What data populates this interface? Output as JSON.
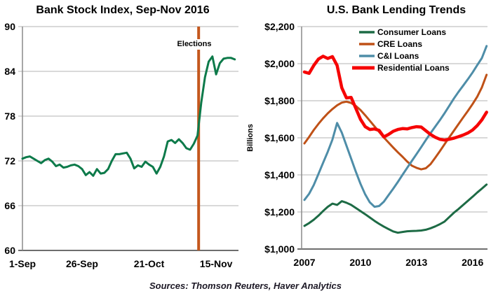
{
  "source_note": "Sources: Thomson Reuters, Haver Analytics",
  "chart_data": [
    {
      "type": "line",
      "title": "Bank Stock Index, Sep-Nov 2016",
      "x_tick_labels": [
        "1-Sep",
        "26-Sep",
        "21-Oct",
        "15-Nov"
      ],
      "x_tick_positions": [
        0,
        16,
        34,
        52
      ],
      "x_range": [
        0,
        58
      ],
      "x_start": 0,
      "x_step": 1,
      "ylim": [
        60,
        90
      ],
      "y_tick_values": [
        60,
        66,
        72,
        78,
        84,
        90
      ],
      "y_tick_labels": [
        "60",
        "66",
        "72",
        "78",
        "84",
        "90"
      ],
      "grid": true,
      "annotation": {
        "label": "Elections",
        "x": 47.3,
        "color": "#c4571d"
      },
      "series": [
        {
          "name": "Bank Stock Index",
          "color": "#0d7a4a",
          "width": 3,
          "values": [
            72.3,
            72.5,
            72.6,
            72.3,
            72.0,
            71.7,
            72.1,
            72.3,
            71.9,
            71.3,
            71.5,
            71.1,
            71.2,
            71.4,
            71.5,
            71.3,
            70.9,
            70.1,
            70.5,
            70.0,
            70.9,
            70.3,
            70.4,
            70.9,
            72.0,
            72.9,
            72.9,
            73.0,
            73.1,
            72.3,
            71.0,
            71.4,
            71.2,
            71.9,
            71.5,
            71.2,
            70.3,
            71.2,
            72.6,
            74.6,
            74.8,
            74.4,
            74.9,
            74.4,
            73.7,
            73.5,
            74.3,
            75.4,
            79.8,
            83.2,
            85.3,
            86.0,
            83.6,
            85.1,
            85.7,
            85.8,
            85.8,
            85.6
          ]
        }
      ]
    },
    {
      "type": "line",
      "title": "U.S. Bank Lending Trends",
      "ylabel": "Billions",
      "x_tick_labels": [
        "2007",
        "2010",
        "2013",
        "2016"
      ],
      "x_tick_positions": [
        2007,
        2010,
        2013,
        2016
      ],
      "x_range": [
        2006.85,
        2016.8
      ],
      "x_start": 2007,
      "x_step": 0.25,
      "ylim": [
        1000,
        2200
      ],
      "y_tick_values": [
        1000,
        1200,
        1400,
        1600,
        1800,
        2000,
        2200
      ],
      "y_tick_labels": [
        "$1,000",
        "$1,200",
        "$1,400",
        "$1,600",
        "$1,800",
        "$2,000",
        "$2,200"
      ],
      "grid": true,
      "legend_position": "top",
      "series": [
        {
          "name": "Consumer Loans",
          "color": "#1d6b45",
          "width": 3,
          "values": [
            1125,
            1140,
            1158,
            1180,
            1205,
            1228,
            1245,
            1238,
            1258,
            1250,
            1238,
            1222,
            1205,
            1188,
            1170,
            1152,
            1136,
            1121,
            1108,
            1095,
            1088,
            1092,
            1096,
            1097,
            1098,
            1100,
            1104,
            1112,
            1122,
            1134,
            1148,
            1172,
            1196,
            1216,
            1238,
            1260,
            1282,
            1305,
            1326,
            1348
          ]
        },
        {
          "name": "CRE Loans",
          "color": "#bf5117",
          "width": 3,
          "values": [
            1570,
            1605,
            1642,
            1675,
            1705,
            1732,
            1755,
            1775,
            1790,
            1795,
            1788,
            1772,
            1750,
            1722,
            1692,
            1662,
            1632,
            1602,
            1575,
            1548,
            1522,
            1498,
            1472,
            1450,
            1438,
            1430,
            1436,
            1458,
            1492,
            1528,
            1565,
            1602,
            1638,
            1674,
            1710,
            1745,
            1782,
            1822,
            1872,
            1940
          ]
        },
        {
          "name": "C&I Loans",
          "color": "#4e8da8",
          "width": 3,
          "values": [
            1265,
            1298,
            1345,
            1405,
            1465,
            1525,
            1590,
            1680,
            1628,
            1558,
            1488,
            1418,
            1352,
            1295,
            1252,
            1228,
            1232,
            1255,
            1290,
            1325,
            1362,
            1400,
            1438,
            1475,
            1512,
            1550,
            1588,
            1625,
            1660,
            1695,
            1732,
            1772,
            1812,
            1848,
            1882,
            1916,
            1952,
            1992,
            2030,
            2095
          ]
        },
        {
          "name": "Residential Loans",
          "color": "#f60505",
          "width": 4.5,
          "values": [
            1955,
            1948,
            1990,
            2025,
            2040,
            2028,
            2038,
            1990,
            1870,
            1815,
            1818,
            1760,
            1700,
            1660,
            1645,
            1648,
            1640,
            1605,
            1618,
            1635,
            1645,
            1650,
            1648,
            1655,
            1660,
            1658,
            1638,
            1618,
            1603,
            1592,
            1588,
            1592,
            1598,
            1606,
            1615,
            1626,
            1642,
            1666,
            1697,
            1738
          ]
        }
      ]
    }
  ]
}
